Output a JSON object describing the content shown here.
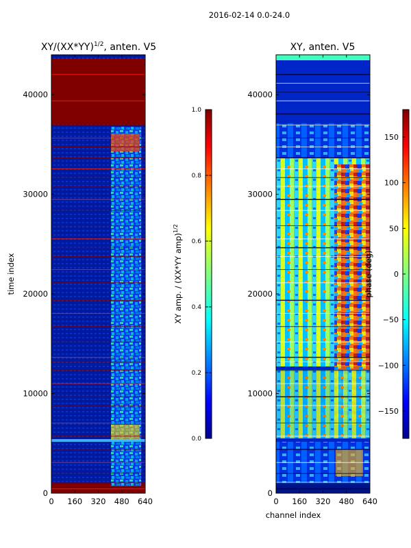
{
  "suptitle": "2016-02-14 0.0-24.0",
  "chart_data": [
    {
      "type": "heatmap",
      "title_main": "XY/(XX*YY)",
      "title_exp": "1/2",
      "title_suffix": ", anten. V5",
      "xlabel": "",
      "ylabel": "time index",
      "xlim": [
        0,
        640
      ],
      "ylim": [
        0,
        44000
      ],
      "xticks": [
        0,
        160,
        320,
        480,
        640
      ],
      "yticks": [
        0,
        10000,
        20000,
        30000,
        40000
      ],
      "colormap": "jet",
      "active_band_x": [
        400,
        600
      ],
      "background": "low amplitude (~0.1) across most channels, saturated (1.0) band at top and at horizontal flag lines",
      "colorbar": {
        "label_main": "XY amp. / (XX*YY amp)",
        "label_exp": "1/2",
        "range": [
          0.0,
          1.0
        ],
        "ticks": [
          "0.0",
          "0.2",
          "0.4",
          "0.6",
          "0.8",
          "1.0"
        ]
      }
    },
    {
      "type": "heatmap",
      "title": "XY, anten. V5",
      "xlabel": "channel index",
      "ylabel": "",
      "xlim": [
        0,
        640
      ],
      "ylim": [
        0,
        44000
      ],
      "xticks": [
        0,
        160,
        320,
        480,
        640
      ],
      "yticks": [
        0,
        10000,
        20000,
        30000,
        40000
      ],
      "colormap": "jet",
      "colorbar": {
        "label": "phase (deg)",
        "range": [
          -180,
          180
        ],
        "ticks": [
          "150",
          "100",
          "50",
          "0",
          "−50",
          "−100",
          "−150"
        ]
      }
    }
  ],
  "colors": {
    "jet_dark_blue": "#00008f",
    "jet_blue": "#0000ff",
    "jet_cyan": "#00ffff",
    "jet_green_yellow": "#7fff7f",
    "jet_yellow": "#ffff00",
    "jet_red": "#ff0000",
    "jet_dark_red": "#800000"
  }
}
